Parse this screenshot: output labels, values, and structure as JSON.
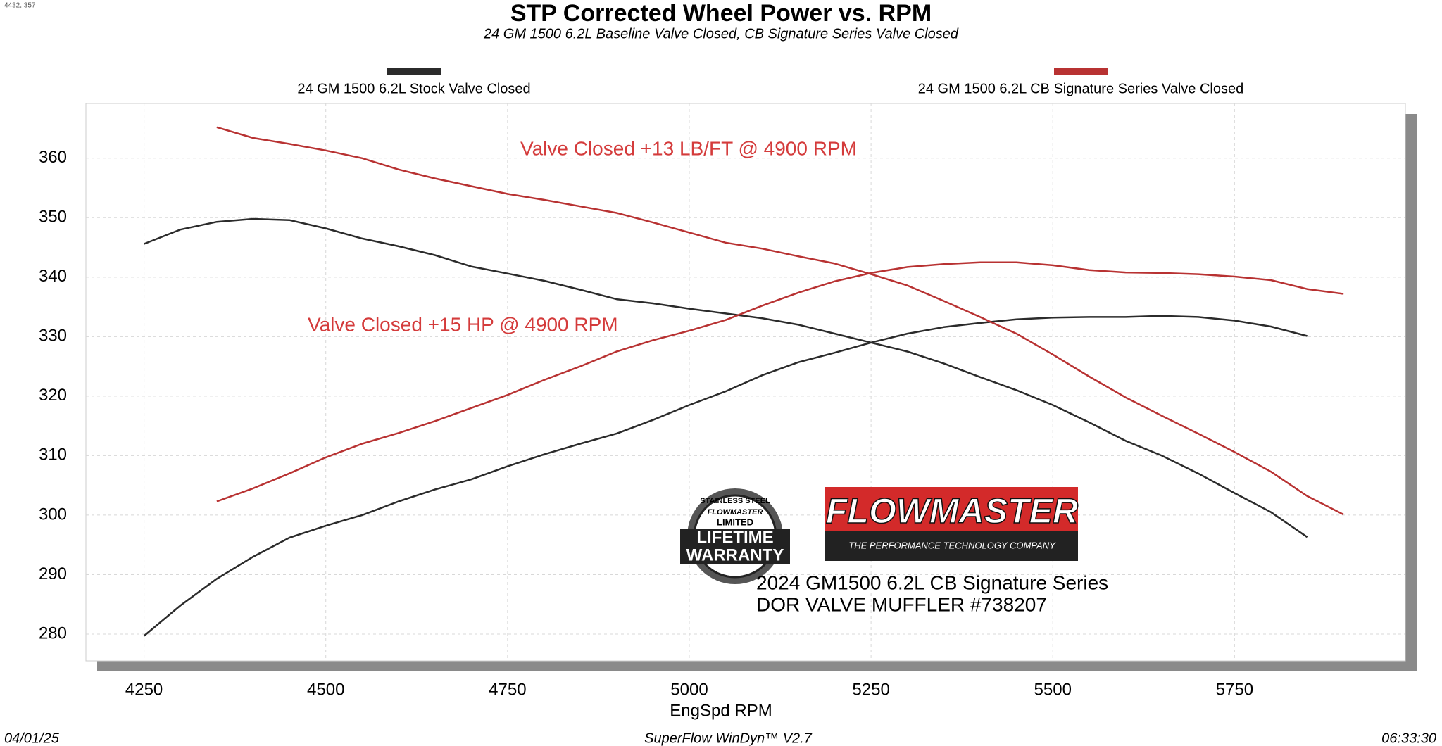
{
  "corner_note": "4432, 357",
  "chart_data": {
    "type": "line",
    "title": "STP Corrected Wheel Power vs. RPM",
    "subtitle": "24 GM 1500 6.2L Baseline Valve Closed, CB Signature Series Valve Closed",
    "x_label": "EngSpd  RPM",
    "annotations": [
      "Valve Closed +13 LB/FT @ 4900 RPM",
      "Valve Closed +15 HP @ 4900 RPM"
    ],
    "annotation_color": "#d43b3b",
    "xlim": [
      4170,
      5985
    ],
    "ylim": [
      275.5,
      369.2
    ],
    "xticks": [
      4250,
      4500,
      4750,
      5000,
      5250,
      5500,
      5750
    ],
    "yticks": [
      280,
      290,
      300,
      310,
      320,
      330,
      340,
      350,
      360
    ],
    "grid": true,
    "x": [
      4250,
      4300,
      4350,
      4400,
      4450,
      4500,
      4550,
      4600,
      4650,
      4700,
      4750,
      4800,
      4850,
      4900,
      4950,
      5000,
      5050,
      5100,
      5150,
      5200,
      5250,
      5300,
      5350,
      5400,
      5450,
      5500,
      5550,
      5600,
      5650,
      5700,
      5750,
      5800,
      5850,
      5900
    ],
    "series": [
      {
        "name": "24 GM 1500 6.2L Stock Valve Closed",
        "color": "#2b2b2b",
        "values": [
          345.6,
          348,
          349.3,
          349.8,
          349.6,
          348.2,
          346.5,
          345.2,
          343.7,
          341.8,
          340.6,
          339.4,
          337.9,
          336.3,
          335.6,
          334.7,
          333.9,
          333.1,
          332,
          330.5,
          329,
          327.5,
          325.5,
          323.2,
          321,
          318.5,
          315.6,
          312.5,
          310,
          307,
          303.7,
          300.5,
          296.3,
          null
        ]
      },
      {
        "color": "#2b2b2b",
        "values": [
          279.7,
          284.8,
          289.3,
          293,
          296.2,
          298.2,
          300,
          302.3,
          304.3,
          306,
          308.2,
          310.2,
          312,
          313.7,
          316,
          318.5,
          320.8,
          323.5,
          325.7,
          327.3,
          329,
          330.5,
          331.6,
          332.3,
          332.9,
          333.2,
          333.3,
          333.3,
          333.5,
          333.3,
          332.7,
          331.7,
          330.1,
          null
        ]
      },
      {
        "name": "24 GM 1500 6.2L CB Signature Series Valve Closed",
        "color": "#b83232",
        "values": [
          null,
          null,
          365.2,
          363.4,
          362.4,
          361.3,
          360,
          358.1,
          356.6,
          355.3,
          354,
          353,
          351.9,
          350.8,
          349.2,
          347.5,
          345.8,
          344.8,
          343.5,
          342.3,
          340.5,
          338.6,
          336,
          333.3,
          330.5,
          327,
          323.3,
          319.8,
          316.7,
          313.7,
          310.6,
          307.3,
          303.2,
          300.1
        ]
      },
      {
        "color": "#b83232",
        "values": [
          null,
          null,
          302.3,
          304.5,
          307,
          309.7,
          312,
          313.8,
          315.8,
          318,
          320.2,
          322.7,
          325,
          327.5,
          329.4,
          331,
          332.8,
          335.2,
          337.4,
          339.3,
          340.7,
          341.7,
          342.2,
          342.5,
          342.5,
          342,
          341.2,
          340.8,
          340.7,
          340.5,
          340.1,
          339.5,
          338,
          337.2
        ]
      }
    ]
  },
  "logos": {
    "warranty_top": "STAINLESS STEEL",
    "warranty_brand": "FLOWMASTER",
    "warranty_limited": "LIMITED",
    "warranty_line1": "LIFETIME",
    "warranty_line2": "WARRANTY",
    "brand": "FLOWMASTER",
    "brand_tagline": "THE PERFORMANCE TECHNOLOGY COMPANY"
  },
  "caption": [
    "2024 GM1500 6.2L CB Signature Series",
    "DOR VALVE MUFFLER #738207"
  ],
  "footer": {
    "date": "04/01/25",
    "software": "SuperFlow WinDyn™ V2.7",
    "time": "06:33:30"
  }
}
